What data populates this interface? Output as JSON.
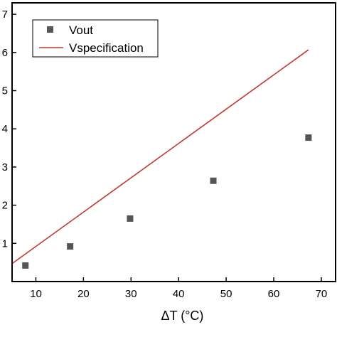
{
  "chart_data": {
    "type": "scatter",
    "xlabel": "ΔT (°C)",
    "ylabel": "",
    "xlim": [
      5,
      73
    ],
    "ylim": [
      0,
      7.3
    ],
    "x_ticks": [
      10,
      20,
      30,
      40,
      50,
      60,
      70
    ],
    "x_tick_labels": [
      "10",
      "20",
      "30",
      "40",
      "50",
      "60",
      "70"
    ],
    "y_ticks": [
      1,
      2,
      3,
      4,
      5,
      6,
      7
    ],
    "y_tick_labels": [
      "1",
      "2",
      "3",
      "4",
      "5",
      "6",
      "7"
    ],
    "grid": false,
    "legend_position": "top-left",
    "series": [
      {
        "name": "Vout",
        "kind": "scatter",
        "marker": "square",
        "color": "#555555",
        "x": [
          7.8,
          17.2,
          29.8,
          47.3,
          67.3
        ],
        "y": [
          0.42,
          0.92,
          1.65,
          2.64,
          3.77
        ]
      },
      {
        "name": "Vspecification",
        "kind": "line",
        "color": "#c0392b",
        "x": [
          5.0,
          67.3
        ],
        "y": [
          0.47,
          6.07
        ]
      }
    ]
  }
}
